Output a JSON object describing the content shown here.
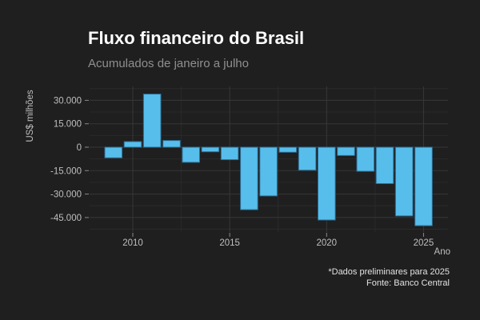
{
  "header": {
    "title": "Fluxo financeiro do Brasil",
    "subtitle": "Acumulados de janeiro a julho"
  },
  "caption": {
    "line1": "*Dados preliminares para 2025",
    "line2": "Fonte: Banco Central"
  },
  "colors": {
    "background": "#1f1f1f",
    "bar_fill": "#57BEEC",
    "bar_stroke": "#2d6d93",
    "grid_major": "#373737",
    "grid_minor": "#2a2a2a",
    "tick_mark": "#8a8a8a",
    "title_text": "#ffffff",
    "subtitle_text": "#8f8f8f",
    "axis_text": "#bfbfbf",
    "caption_text": "#e2e2e2"
  },
  "chart_data": {
    "type": "bar",
    "title": "Fluxo financeiro do Brasil",
    "subtitle": "Acumulados de janeiro a julho",
    "xlabel": "Ano",
    "ylabel": "US$ milhões",
    "unit": "US$ milhões",
    "x": [
      2009,
      2010,
      2011,
      2012,
      2013,
      2014,
      2015,
      2016,
      2017,
      2018,
      2019,
      2020,
      2021,
      2022,
      2023,
      2024,
      2025
    ],
    "values": [
      -6800,
      3600,
      34000,
      4300,
      -9700,
      -2900,
      -8000,
      -40000,
      -31200,
      -3200,
      -14700,
      -46600,
      -5300,
      -15400,
      -23300,
      -44000,
      -50200
    ],
    "x_ticks": [
      2010,
      2015,
      2020,
      2025
    ],
    "x_tick_labels": [
      "2010",
      "2015",
      "2020",
      "2025"
    ],
    "y_ticks": [
      30000,
      15000,
      0,
      -15000,
      -30000,
      -45000
    ],
    "y_tick_labels": [
      "30.000",
      "15.000",
      "0",
      "-15.000",
      "-30.000",
      "-45.000"
    ],
    "ylim": [
      -54500,
      38500
    ],
    "xlim": [
      2008.3,
      2026.3
    ],
    "grid": true,
    "legend_position": "none",
    "note": "*Dados preliminares para 2025",
    "source": "Fonte: Banco Central"
  }
}
